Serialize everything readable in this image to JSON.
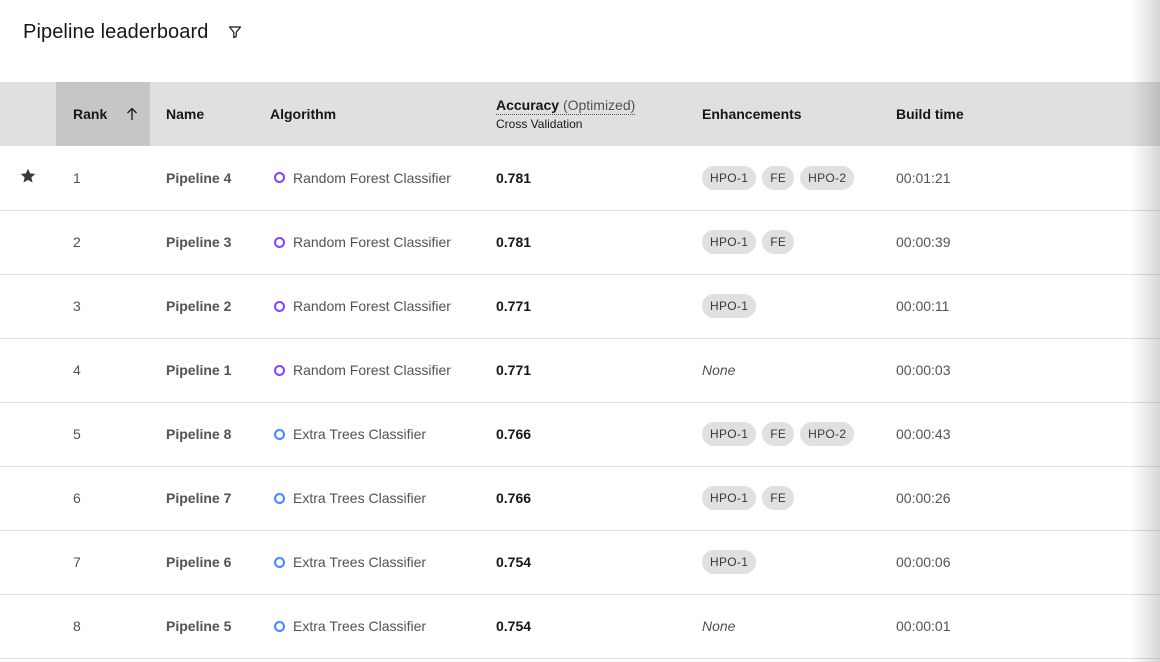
{
  "header": {
    "title": "Pipeline leaderboard",
    "filter_icon": "filter-icon"
  },
  "table": {
    "columns": {
      "rank": "Rank",
      "name": "Name",
      "algorithm": "Algorithm",
      "accuracy": "Accuracy",
      "accuracy_note": "(Optimized)",
      "accuracy_sub": "Cross Validation",
      "enhancements": "Enhancements",
      "build_time": "Build time"
    },
    "sort_icon": "arrow-up-icon",
    "starred_icon": "star-icon",
    "colors": {
      "random_forest": "#8a3ffc",
      "extra_trees": "#4589ff"
    },
    "rows": [
      {
        "rank": "1",
        "name": "Pipeline 4",
        "algorithm": "Random Forest Classifier",
        "algo_type": "rf",
        "accuracy": "0.781",
        "enhancements": [
          "HPO-1",
          "FE",
          "HPO-2"
        ],
        "none_label": "",
        "build_time": "00:01:21",
        "starred": true
      },
      {
        "rank": "2",
        "name": "Pipeline 3",
        "algorithm": "Random Forest Classifier",
        "algo_type": "rf",
        "accuracy": "0.781",
        "enhancements": [
          "HPO-1",
          "FE"
        ],
        "none_label": "",
        "build_time": "00:00:39",
        "starred": false
      },
      {
        "rank": "3",
        "name": "Pipeline 2",
        "algorithm": "Random Forest Classifier",
        "algo_type": "rf",
        "accuracy": "0.771",
        "enhancements": [
          "HPO-1"
        ],
        "none_label": "",
        "build_time": "00:00:11",
        "starred": false
      },
      {
        "rank": "4",
        "name": "Pipeline 1",
        "algorithm": "Random Forest Classifier",
        "algo_type": "rf",
        "accuracy": "0.771",
        "enhancements": [],
        "none_label": "None",
        "build_time": "00:00:03",
        "starred": false
      },
      {
        "rank": "5",
        "name": "Pipeline 8",
        "algorithm": "Extra Trees Classifier",
        "algo_type": "et",
        "accuracy": "0.766",
        "enhancements": [
          "HPO-1",
          "FE",
          "HPO-2"
        ],
        "none_label": "",
        "build_time": "00:00:43",
        "starred": false
      },
      {
        "rank": "6",
        "name": "Pipeline 7",
        "algorithm": "Extra Trees Classifier",
        "algo_type": "et",
        "accuracy": "0.766",
        "enhancements": [
          "HPO-1",
          "FE"
        ],
        "none_label": "",
        "build_time": "00:00:26",
        "starred": false
      },
      {
        "rank": "7",
        "name": "Pipeline 6",
        "algorithm": "Extra Trees Classifier",
        "algo_type": "et",
        "accuracy": "0.754",
        "enhancements": [
          "HPO-1"
        ],
        "none_label": "",
        "build_time": "00:00:06",
        "starred": false
      },
      {
        "rank": "8",
        "name": "Pipeline 5",
        "algorithm": "Extra Trees Classifier",
        "algo_type": "et",
        "accuracy": "0.754",
        "enhancements": [],
        "none_label": "None",
        "build_time": "00:00:01",
        "starred": false
      }
    ]
  }
}
